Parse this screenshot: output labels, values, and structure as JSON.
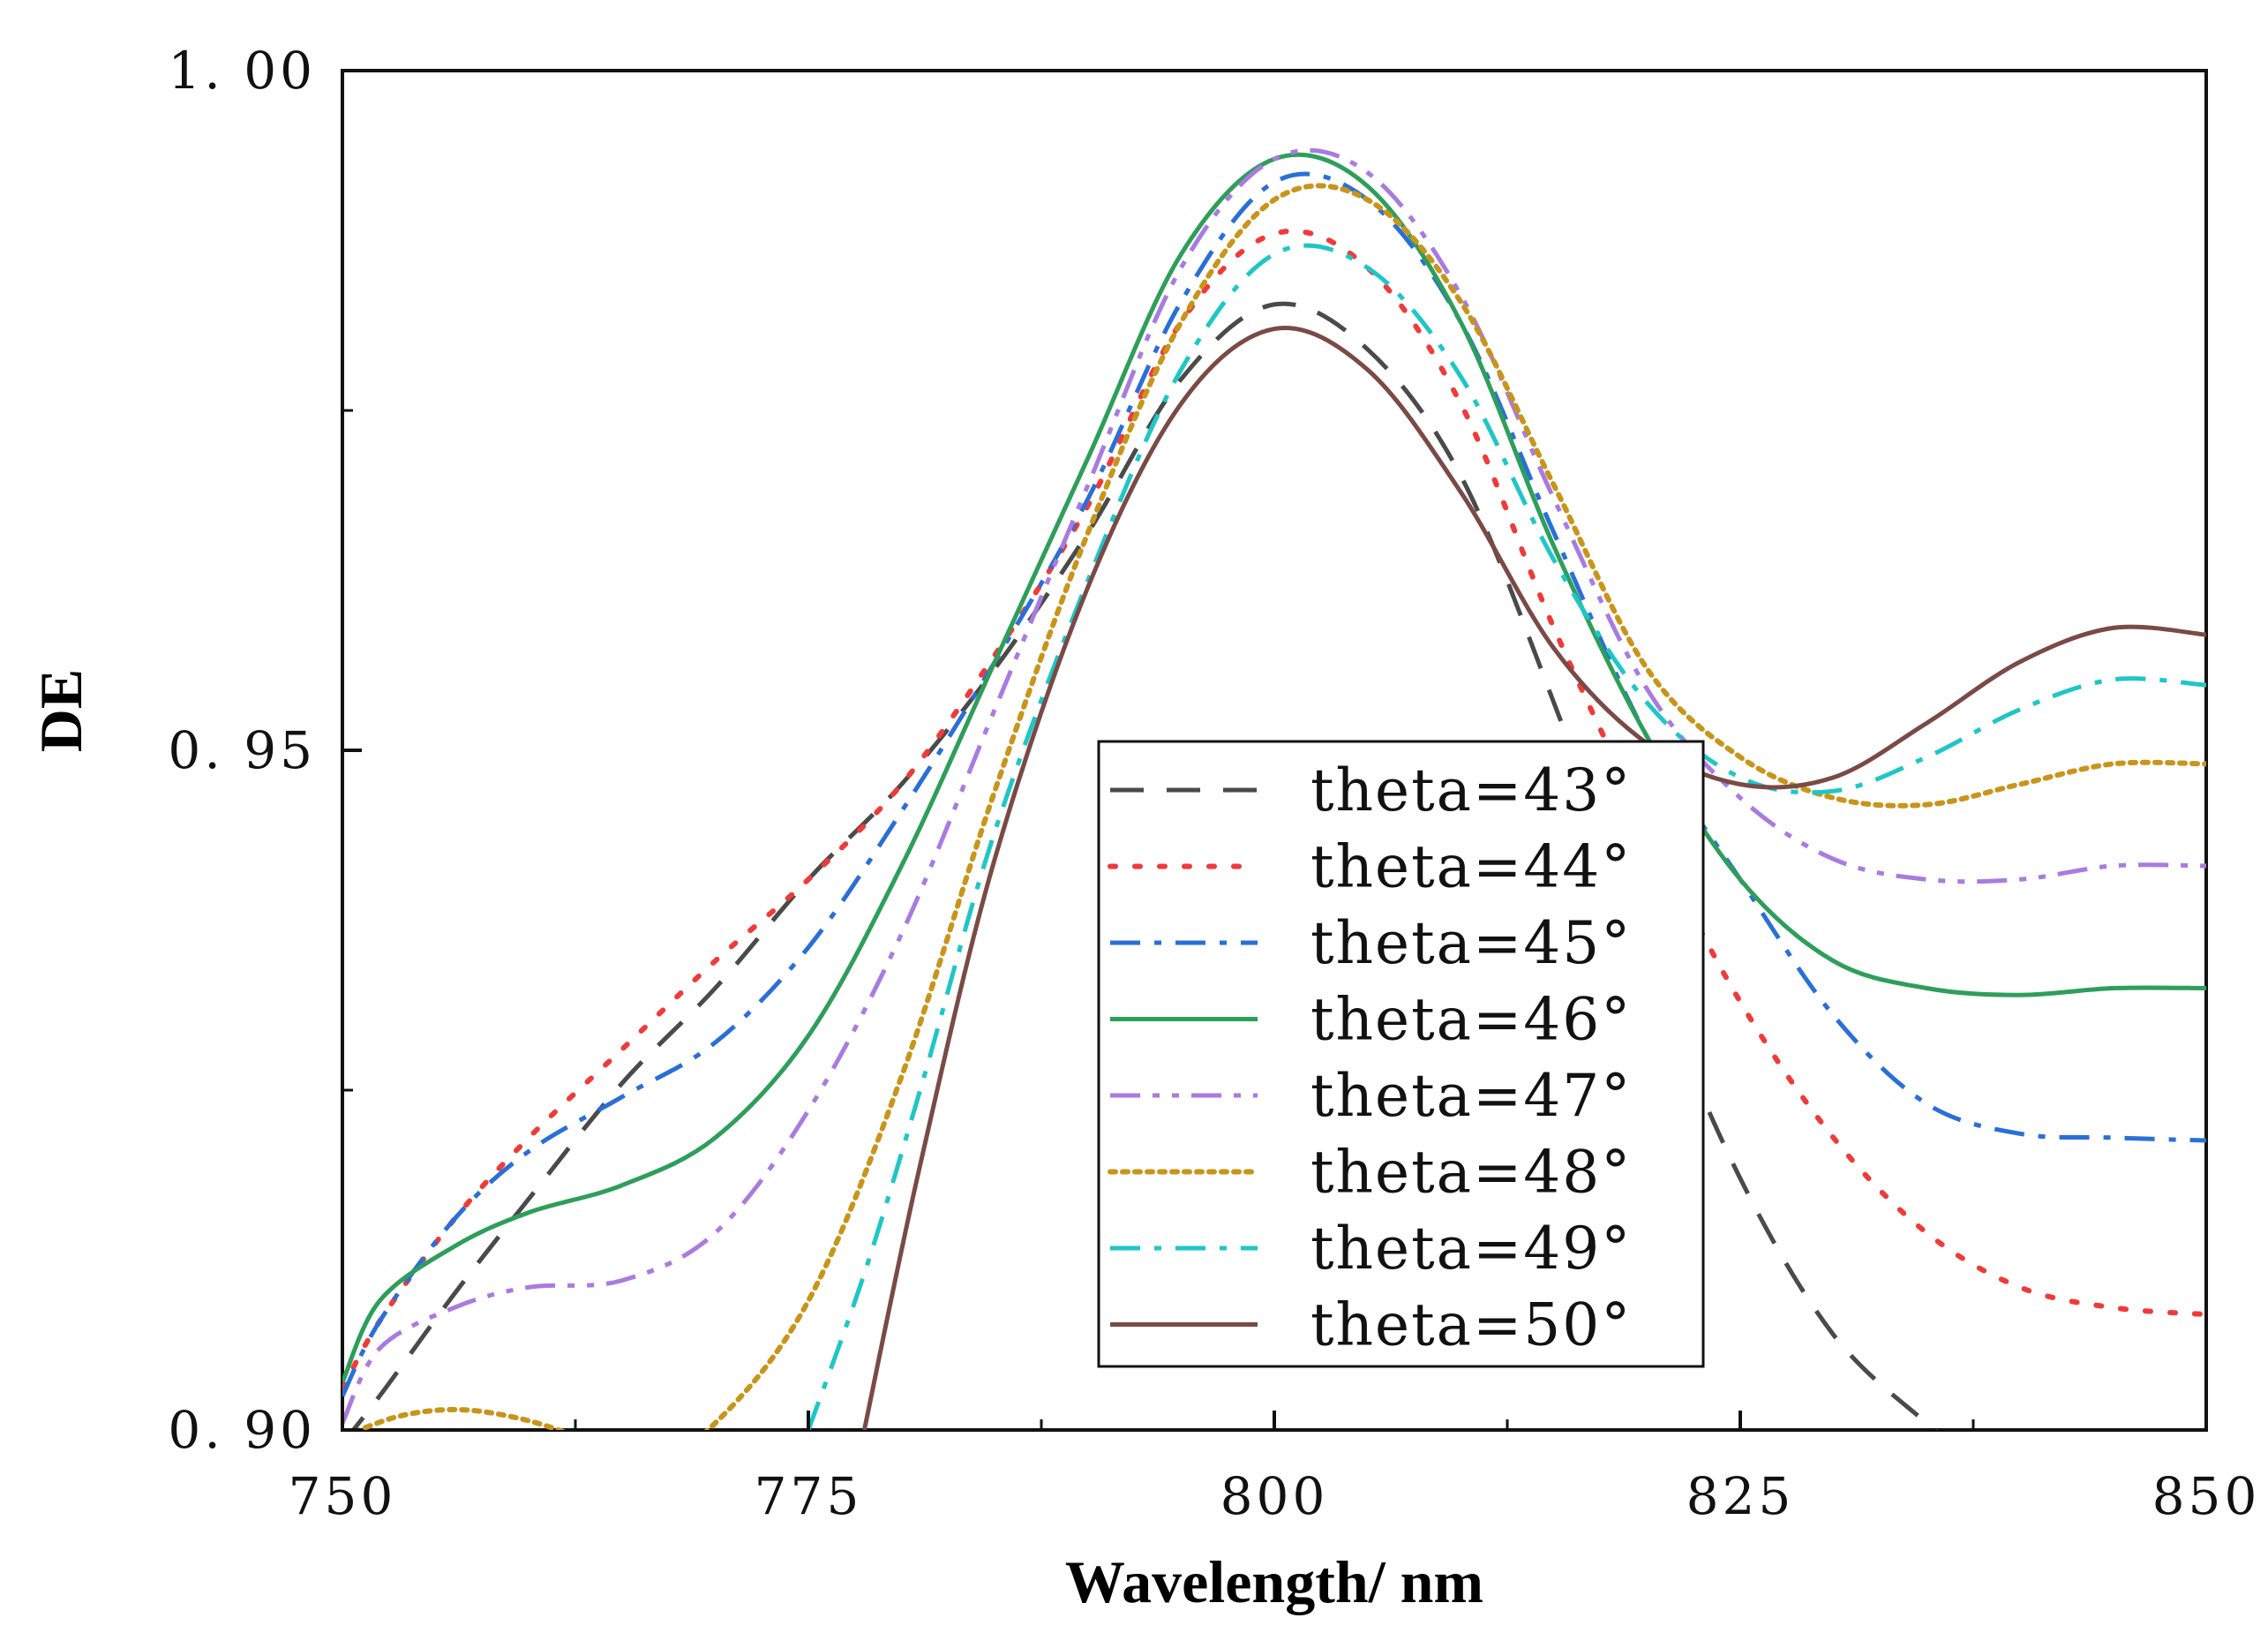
{
  "chart_data": {
    "type": "line",
    "title": "",
    "xlabel": "Wavelength/ nm",
    "ylabel": "DE",
    "xlim": [
      750,
      850
    ],
    "ylim": [
      0.9,
      1.0
    ],
    "x_ticks": [
      750,
      775,
      800,
      825,
      850
    ],
    "x_tick_labels": [
      "750",
      "775",
      "800",
      "825",
      "850"
    ],
    "y_ticks": [
      0.9,
      0.95,
      1.0
    ],
    "y_tick_labels": [
      "0. 90",
      "0. 95",
      "1. 00"
    ],
    "x_minor_ticks": [
      762.5,
      787.5,
      812.5,
      837.5
    ],
    "y_minor_ticks": [
      0.925,
      0.975
    ],
    "grid": false,
    "legend_position": "center-right",
    "series": [
      {
        "name": "theta=43°",
        "color": "#4a4a4a",
        "dash": "dash",
        "x": [
          750,
          752,
          756,
          760,
          765,
          770,
          775,
          780,
          785,
          790,
          795,
          800,
          805,
          810,
          815,
          820,
          825,
          830,
          835,
          836
        ],
        "y": [
          0.899,
          0.9025,
          0.91,
          0.917,
          0.9255,
          0.9325,
          0.9405,
          0.9475,
          0.956,
          0.966,
          0.9773,
          0.9828,
          0.9795,
          0.9702,
          0.9535,
          0.9345,
          0.9185,
          0.907,
          0.9005,
          0.8995
        ]
      },
      {
        "name": "theta=44°",
        "color": "#f03a3a",
        "dash": "dot",
        "x": [
          750,
          752,
          756,
          760,
          765,
          770,
          775,
          780,
          785,
          790,
          795,
          800,
          805,
          810,
          815,
          820,
          825,
          830,
          835,
          840,
          845,
          850
        ],
        "y": [
          0.903,
          0.908,
          0.9155,
          0.9215,
          0.928,
          0.9345,
          0.9405,
          0.9475,
          0.957,
          0.968,
          0.9815,
          0.988,
          0.9855,
          0.9755,
          0.959,
          0.9445,
          0.9315,
          0.9215,
          0.9145,
          0.9105,
          0.909,
          0.9085
        ]
      },
      {
        "name": "theta=45°",
        "color": "#2a6fd8",
        "dash": "dashdot",
        "x": [
          750,
          752,
          756,
          760,
          765,
          770,
          775,
          780,
          785,
          790,
          795,
          800,
          805,
          810,
          815,
          820,
          825,
          830,
          835,
          840,
          845,
          850
        ],
        "y": [
          0.9025,
          0.908,
          0.9155,
          0.9205,
          0.9245,
          0.9285,
          0.9355,
          0.9455,
          0.9565,
          0.9685,
          0.983,
          0.9918,
          0.9905,
          0.9815,
          0.966,
          0.951,
          0.9405,
          0.9305,
          0.924,
          0.9218,
          0.9215,
          0.9213
        ]
      },
      {
        "name": "theta=46°",
        "color": "#2e9e5b",
        "dash": "solid",
        "x": [
          750,
          752,
          756,
          760,
          765,
          770,
          775,
          780,
          785,
          790,
          795,
          800,
          805,
          810,
          815,
          820,
          825,
          830,
          835,
          840,
          845,
          850
        ],
        "y": [
          0.9035,
          0.9095,
          0.9135,
          0.916,
          0.918,
          0.9215,
          0.929,
          0.9415,
          0.9565,
          0.9715,
          0.9865,
          0.9935,
          0.9915,
          0.9815,
          0.965,
          0.951,
          0.9405,
          0.9345,
          0.9325,
          0.932,
          0.9325,
          0.9325
        ]
      },
      {
        "name": "theta=47°",
        "color": "#a97be0",
        "dash": "dashdotdot",
        "x": [
          750,
          752,
          756,
          760,
          765,
          770,
          775,
          780,
          785,
          790,
          795,
          800,
          805,
          810,
          815,
          820,
          825,
          830,
          835,
          840,
          845,
          850
        ],
        "y": [
          0.9005,
          0.906,
          0.909,
          0.9105,
          0.911,
          0.9145,
          0.9235,
          0.9365,
          0.953,
          0.9695,
          0.9855,
          0.9935,
          0.9925,
          0.9835,
          0.9685,
          0.9545,
          0.9465,
          0.942,
          0.9405,
          0.9405,
          0.9415,
          0.9415
        ]
      },
      {
        "name": "theta=48°",
        "color": "#c8951a",
        "dash": "dense-dot",
        "x": [
          750,
          753,
          756,
          759,
          762,
          766,
          770,
          775,
          780,
          785,
          790,
          795,
          800,
          805,
          810,
          815,
          820,
          825,
          830,
          835,
          840,
          845,
          850
        ],
        "y": [
          0.8995,
          0.901,
          0.9015,
          0.901,
          0.8998,
          0.8975,
          0.9005,
          0.9095,
          0.926,
          0.947,
          0.966,
          0.9815,
          0.9905,
          0.9905,
          0.983,
          0.9695,
          0.956,
          0.9495,
          0.9465,
          0.946,
          0.9475,
          0.949,
          0.949
        ]
      },
      {
        "name": "theta=49°",
        "color": "#1fc6c6",
        "dash": "dashdot",
        "x": [
          775,
          778,
          781,
          785,
          790,
          795,
          800,
          805,
          810,
          815,
          820,
          825,
          830,
          835,
          840,
          845,
          850
        ],
        "y": [
          0.9,
          0.9115,
          0.925,
          0.944,
          0.9625,
          0.978,
          0.9865,
          0.9855,
          0.9775,
          0.964,
          0.9535,
          0.948,
          0.947,
          0.9495,
          0.953,
          0.9552,
          0.9548
        ]
      },
      {
        "name": "theta=50°",
        "color": "#7a4a46",
        "dash": "solid",
        "x": [
          778,
          781,
          785,
          790,
          795,
          800,
          805,
          810,
          815,
          820,
          825,
          830,
          835,
          840,
          845,
          850
        ],
        "y": [
          0.9,
          0.9195,
          0.942,
          0.962,
          0.9755,
          0.981,
          0.978,
          0.969,
          0.9575,
          0.9505,
          0.9475,
          0.948,
          0.952,
          0.9565,
          0.959,
          0.9585
        ]
      }
    ]
  }
}
